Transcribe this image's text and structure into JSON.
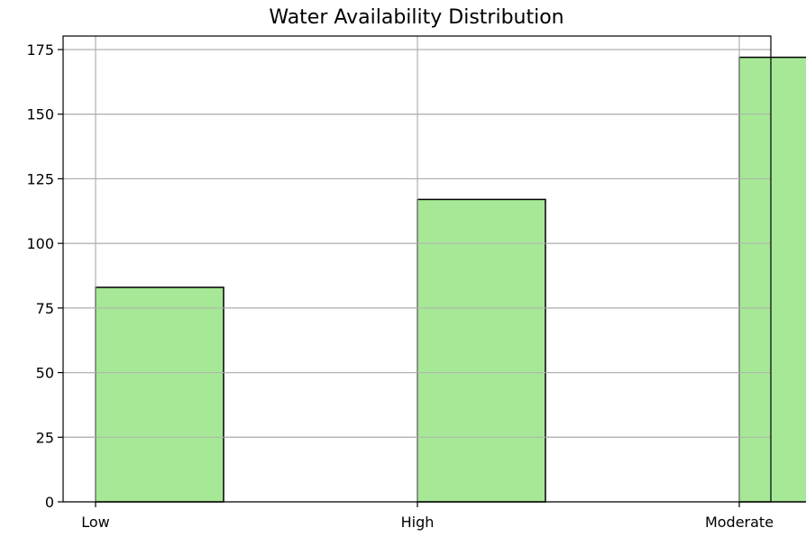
{
  "chart_data": {
    "type": "bar",
    "title": "Water Availability Distribution",
    "xlabel": "",
    "ylabel": "",
    "categories": [
      "Low",
      "High",
      "Moderate"
    ],
    "values": [
      83,
      117,
      172
    ],
    "ylim": [
      0,
      180
    ],
    "yticks": [
      0,
      25,
      50,
      75,
      100,
      125,
      150,
      175
    ],
    "grid": true,
    "bar_color": "#a6e896",
    "bar_edge_color": "#000000"
  }
}
